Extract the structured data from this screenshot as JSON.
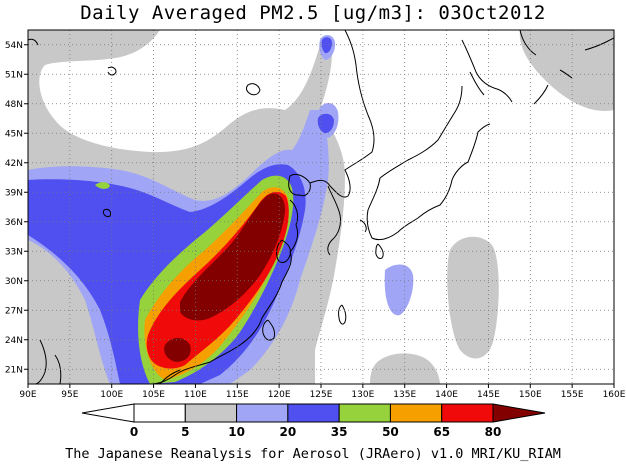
{
  "title": "Daily Averaged PM2.5 [ug/m3]: 03Oct2012",
  "footer": "The Japanese Reanalysis for Aerosol (JRAero) v1.0 MRI/KU_RIAM",
  "map": {
    "lon_range": [
      90,
      160
    ],
    "lat_range": [
      19.5,
      55.5
    ],
    "lon_ticks": [
      "90E",
      "95E",
      "100E",
      "105E",
      "110E",
      "115E",
      "120E",
      "125E",
      "130E",
      "135E",
      "140E",
      "145E",
      "150E",
      "155E",
      "160E"
    ],
    "lat_ticks": [
      "21N",
      "24N",
      "27N",
      "30N",
      "33N",
      "36N",
      "39N",
      "42N",
      "45N",
      "48N",
      "51N",
      "54N"
    ],
    "gridlines": "dotted"
  },
  "colorbar": {
    "levels": [
      "0",
      "5",
      "10",
      "20",
      "35",
      "50",
      "65",
      "80"
    ],
    "colors": [
      "#ffffff",
      "#c8c8c8",
      "#a0a6f5",
      "#5050f0",
      "#96d23c",
      "#f5a000",
      "#f00a0a",
      "#820000"
    ],
    "extend": "both"
  }
}
